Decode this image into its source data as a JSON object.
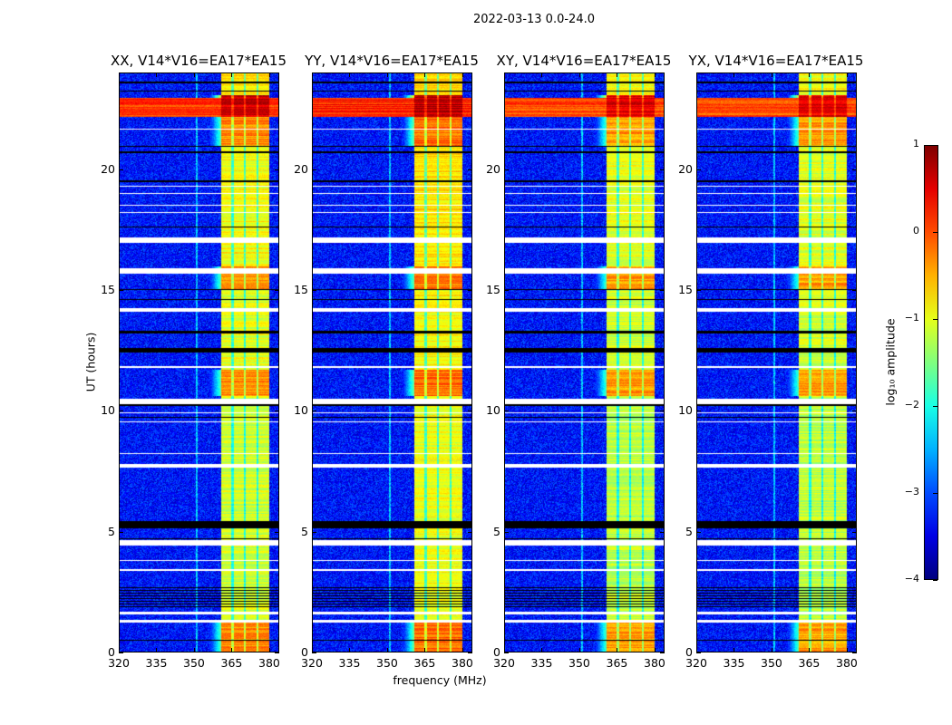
{
  "suptitle": "2022-03-13 0.0-24.0",
  "chart_data": {
    "type": "heatmap",
    "xlabel": "frequency (MHz)",
    "ylabel": "UT (hours)",
    "xlim": [
      320,
      384
    ],
    "ylim": [
      0,
      24
    ],
    "xticks": [
      320,
      335,
      350,
      365,
      380
    ],
    "yticks": [
      0,
      5,
      10,
      15,
      20
    ],
    "panels": [
      {
        "title": "XX, V14*V16=EA17*EA15",
        "gain": 0.0
      },
      {
        "title": "YY, V14*V16=EA17*EA15",
        "gain": 0.15
      },
      {
        "title": "XY, V14*V16=EA17*EA15",
        "gain": -0.1
      },
      {
        "title": "YX, V14*V16=EA17*EA15",
        "gain": -0.1
      }
    ],
    "background_level": -3.3,
    "bright_band_mhz": [
      361,
      380.5
    ],
    "subband_gaps_mhz": [
      365.5,
      370.5,
      375.5
    ],
    "weak_line_mhz": 351,
    "band_levels": [
      {
        "from": 0.0,
        "to": 1.2,
        "level": -0.3
      },
      {
        "from": 1.2,
        "to": 10.6,
        "level": -1.1
      },
      {
        "from": 10.6,
        "to": 11.7,
        "level": -0.3
      },
      {
        "from": 11.7,
        "to": 15.0,
        "level": -1.0
      },
      {
        "from": 15.0,
        "to": 16.0,
        "level": -0.3
      },
      {
        "from": 16.0,
        "to": 21.0,
        "level": -0.9
      },
      {
        "from": 21.0,
        "to": 22.2,
        "level": -0.3
      },
      {
        "from": 22.2,
        "to": 23.1,
        "level": 0.6
      },
      {
        "from": 23.1,
        "to": 24.0,
        "level": -0.8
      }
    ],
    "broadband_rfi_hours": [
      22.2,
      23.0
    ],
    "broadband_rfi_level": 0.1,
    "flagged_rows_hours": [
      [
        21.65,
        21.72
      ],
      [
        19.28,
        19.34
      ],
      [
        18.98,
        19.04
      ],
      [
        18.5,
        18.56
      ],
      [
        18.2,
        18.26
      ],
      [
        16.95,
        17.2
      ],
      [
        15.7,
        15.92
      ],
      [
        14.1,
        14.24
      ],
      [
        11.78,
        11.86
      ],
      [
        10.28,
        10.5
      ],
      [
        9.88,
        9.94
      ],
      [
        9.5,
        9.55
      ],
      [
        8.2,
        8.25
      ],
      [
        7.65,
        7.8
      ],
      [
        4.4,
        4.62
      ],
      [
        3.75,
        3.8
      ],
      [
        3.35,
        3.42
      ],
      [
        1.55,
        1.65
      ],
      [
        1.2,
        1.3
      ]
    ],
    "zero_rows_hours": [
      [
        23.6,
        23.65
      ],
      [
        23.25,
        23.3
      ],
      [
        20.95,
        21.0
      ],
      [
        20.7,
        20.75
      ],
      [
        19.5,
        19.55
      ],
      [
        17.6,
        17.65
      ],
      [
        15.0,
        15.05
      ],
      [
        14.6,
        14.65
      ],
      [
        13.2,
        13.3
      ],
      [
        12.4,
        12.6
      ],
      [
        10.2,
        10.27
      ],
      [
        9.7,
        9.74
      ],
      [
        5.1,
        5.4
      ],
      [
        4.65,
        4.7
      ],
      [
        0.45,
        0.5
      ]
    ],
    "striped_rows_hours": [
      1.8,
      2.75
    ],
    "colorbar": {
      "label": "log₁₀ amplitude",
      "range": [
        -4,
        1
      ],
      "ticks": [
        -4,
        -3,
        -2,
        -1,
        0,
        1
      ],
      "tick_labels": [
        "−4",
        "−3",
        "−2",
        "−1",
        "0",
        "1"
      ],
      "colormap": "jet"
    }
  }
}
